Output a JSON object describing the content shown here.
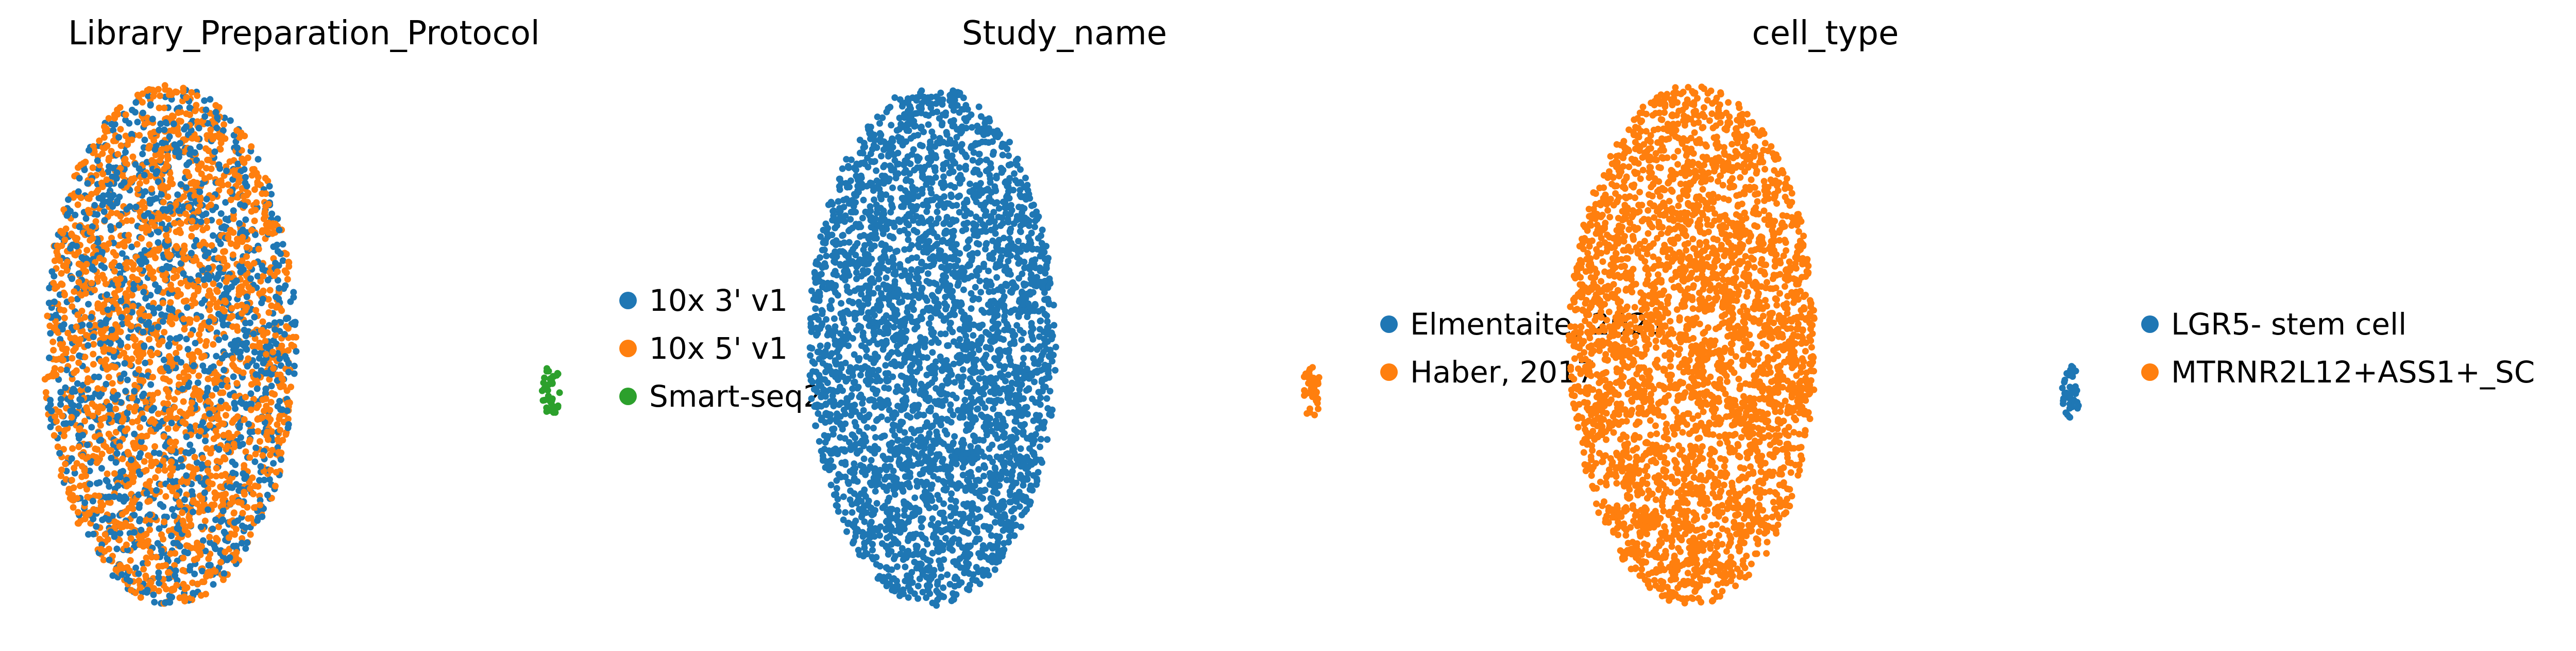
{
  "chart_data": [
    {
      "type": "scatter",
      "title": "Library_Preparation_Protocol",
      "xlabel": "",
      "ylabel": "",
      "grid": false,
      "legend": "right",
      "series": [
        {
          "name": "10x 3' v1",
          "color": "#1f77b4",
          "count": 1400
        },
        {
          "name": "10x 5' v1",
          "color": "#ff7f0e",
          "count": 2000
        },
        {
          "name": "Smart-seq2",
          "color": "#2ca02c",
          "count": 40
        }
      ]
    },
    {
      "type": "scatter",
      "title": "Study_name",
      "xlabel": "",
      "ylabel": "",
      "grid": false,
      "legend": "right",
      "series": [
        {
          "name": "Elmentaite, 2021",
          "color": "#1f77b4",
          "count": 3400
        },
        {
          "name": "Haber, 2017",
          "color": "#ff7f0e",
          "count": 40
        }
      ]
    },
    {
      "type": "scatter",
      "title": "cell_type",
      "xlabel": "",
      "ylabel": "",
      "grid": false,
      "legend": "right",
      "series": [
        {
          "name": "LGR5- stem cell",
          "color": "#1f77b4",
          "count": 40
        },
        {
          "name": "MTRNR2L12+ASS1+_SC",
          "color": "#ff7f0e",
          "count": 3400
        }
      ]
    }
  ]
}
